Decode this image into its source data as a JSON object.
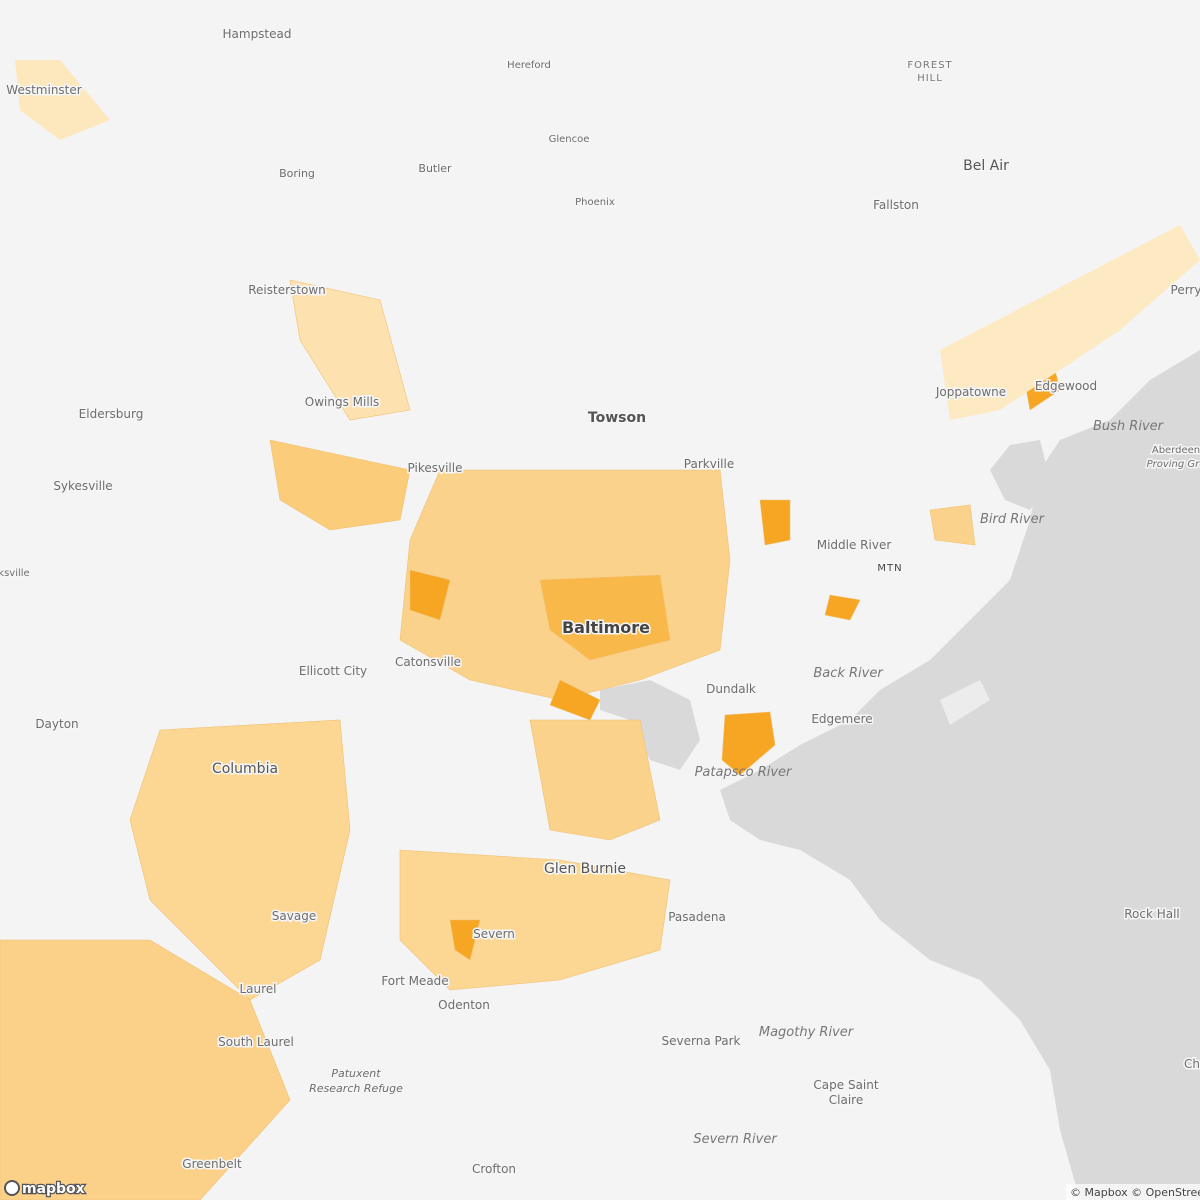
{
  "map": {
    "places": [
      "Hampstead",
      "Hereford",
      "FOREST",
      "HILL",
      "Westminster",
      "Glencoe",
      "Butler",
      "Boring",
      "Phoenix",
      "Bel Air",
      "Fallston",
      "Perry",
      "Reisterstown",
      "Joppatowne",
      "Edgewood",
      "Towson",
      "Owings Mills",
      "Eldersburg",
      "Pikesville",
      "Parkville",
      "Sykesville",
      "Middle River",
      "MTN",
      "ksville",
      "Baltimore",
      "Catonsville",
      "Ellicott City",
      "Dundalk",
      "Edgemere",
      "Dayton",
      "Columbia",
      "Glen Burnie",
      "Pasadena",
      "Savage",
      "Severn",
      "Fort Meade",
      "Odenton",
      "Laurel",
      "Rock Hall",
      "Severna Park",
      "South Laurel",
      "Patuxent",
      "Research Refuge",
      "Cape Saint",
      "Claire",
      "Greenbelt",
      "Crofton",
      "Aberdeen",
      "Proving Gro",
      "Ch"
    ],
    "water_labels": [
      "Bush River",
      "Bird River",
      "Back River",
      "Patapsco River",
      "Magothy River",
      "Severn River"
    ],
    "logo": "mapbox",
    "attribution": "© Mapbox © OpenStreetMap"
  }
}
